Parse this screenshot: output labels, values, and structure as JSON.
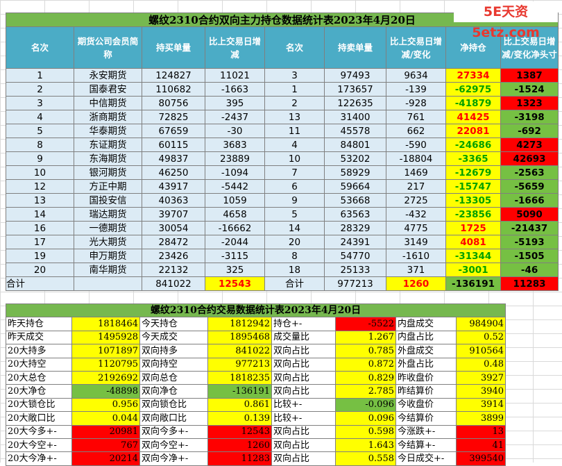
{
  "watermark": "5E天资5etz.com",
  "table1": {
    "title": "螺纹2310合约双向主力持仓数据统计表2023年4月20日",
    "headers": [
      "名次",
      "期货公司会员简称",
      "持买单量",
      "比上交易日增减",
      "名次",
      "持卖单量",
      "比上交易日增减/变化",
      "净持仓",
      "比上交易日增减/变化净头寸"
    ],
    "rows": [
      {
        "rank": "1",
        "name": "永安期货",
        "buy": "124827",
        "buy_chg": "11021",
        "srank": "3",
        "sell": "97493",
        "sell_chg": "9634",
        "net": "27334",
        "net_chg": "1387"
      },
      {
        "rank": "2",
        "name": "国泰君安",
        "buy": "110682",
        "buy_chg": "-1663",
        "srank": "1",
        "sell": "173657",
        "sell_chg": "-139",
        "net": "-62975",
        "net_chg": "-1524"
      },
      {
        "rank": "3",
        "name": "中信期货",
        "buy": "80756",
        "buy_chg": "395",
        "srank": "2",
        "sell": "122635",
        "sell_chg": "-928",
        "net": "-41879",
        "net_chg": "1323"
      },
      {
        "rank": "4",
        "name": "浙商期货",
        "buy": "72825",
        "buy_chg": "-2437",
        "srank": "13",
        "sell": "31400",
        "sell_chg": "761",
        "net": "41425",
        "net_chg": "-3198"
      },
      {
        "rank": "5",
        "name": "华泰期货",
        "buy": "67659",
        "buy_chg": "-30",
        "srank": "11",
        "sell": "45578",
        "sell_chg": "662",
        "net": "22081",
        "net_chg": "-692"
      },
      {
        "rank": "8",
        "name": "东证期货",
        "buy": "60115",
        "buy_chg": "3683",
        "srank": "4",
        "sell": "84801",
        "sell_chg": "-590",
        "net": "-24686",
        "net_chg": "4273"
      },
      {
        "rank": "9",
        "name": "东海期货",
        "buy": "49837",
        "buy_chg": "23889",
        "srank": "10",
        "sell": "53202",
        "sell_chg": "-18804",
        "net": "-3365",
        "net_chg": "42693"
      },
      {
        "rank": "10",
        "name": "银河期货",
        "buy": "46250",
        "buy_chg": "-1094",
        "srank": "7",
        "sell": "58929",
        "sell_chg": "1469",
        "net": "-12679",
        "net_chg": "-2563"
      },
      {
        "rank": "12",
        "name": "方正中期",
        "buy": "43917",
        "buy_chg": "-5442",
        "srank": "6",
        "sell": "59664",
        "sell_chg": "217",
        "net": "-15747",
        "net_chg": "-5659"
      },
      {
        "rank": "13",
        "name": "国投安信",
        "buy": "40363",
        "buy_chg": "1059",
        "srank": "9",
        "sell": "53668",
        "sell_chg": "2725",
        "net": "-13305",
        "net_chg": "-1666"
      },
      {
        "rank": "14",
        "name": "瑞达期货",
        "buy": "39707",
        "buy_chg": "4658",
        "srank": "5",
        "sell": "63563",
        "sell_chg": "-432",
        "net": "-23856",
        "net_chg": "5090"
      },
      {
        "rank": "16",
        "name": "一德期货",
        "buy": "30054",
        "buy_chg": "-16662",
        "srank": "14",
        "sell": "28329",
        "sell_chg": "4775",
        "net": "1725",
        "net_chg": "-21437"
      },
      {
        "rank": "17",
        "name": "光大期货",
        "buy": "28472",
        "buy_chg": "-2044",
        "srank": "20",
        "sell": "24391",
        "sell_chg": "3149",
        "net": "4081",
        "net_chg": "-5193"
      },
      {
        "rank": "19",
        "name": "申万期货",
        "buy": "23426",
        "buy_chg": "-3115",
        "srank": "8",
        "sell": "54770",
        "sell_chg": "-1610",
        "net": "-31344",
        "net_chg": "-1505"
      },
      {
        "rank": "20",
        "name": "南华期货",
        "buy": "22132",
        "buy_chg": "325",
        "srank": "18",
        "sell": "25133",
        "sell_chg": "371",
        "net": "-3001",
        "net_chg": "-46"
      }
    ],
    "total": {
      "label": "合计",
      "buy": "841022",
      "buy_chg": "12543",
      "label2": "合计",
      "sell": "977213",
      "sell_chg": "1260",
      "net": "-136191",
      "net_chg": "11283"
    }
  },
  "table2": {
    "title": "螺纹2310合约交易数据统计表2023年4月20日",
    "rows": [
      [
        "昨天持仓",
        "1818464",
        "今天持仓",
        "1812942",
        "持仓+-",
        "-5522",
        "内盘成交",
        "984904"
      ],
      [
        "昨天成交",
        "1495928",
        "今天成交",
        "1895468",
        "成交量比",
        "1.267",
        "内盘占比",
        "0.52"
      ],
      [
        "20大持多",
        "1071897",
        "双向持多",
        "841022",
        "双向占比",
        "0.785",
        "外盘成交",
        "910564"
      ],
      [
        "20大持空",
        "1120795",
        "双向持空",
        "977213",
        "双向占比",
        "0.872",
        "外盘占比",
        "0.48"
      ],
      [
        "20大总仓",
        "2192692",
        "双向总仓",
        "1818235",
        "双向占比",
        "0.829",
        "昨收盘价",
        "3927"
      ],
      [
        "20大净仓",
        "-48898",
        "双向净仓",
        "-136191",
        "双向占比",
        "2.785",
        "昨结算价",
        "3940"
      ],
      [
        "20大锁仓比",
        "0.956",
        "双向锁仓比",
        "0.861",
        "比较+-",
        "-0.096",
        "今收盘价",
        "3914"
      ],
      [
        "20大敞口比",
        "0.044",
        "双向敞口比",
        "0.139",
        "比较+-",
        "0.096",
        "今结算价",
        "3899"
      ],
      [
        "20大今多+-",
        "20981",
        "双向今多+-",
        "12543",
        "双向占比",
        "0.598",
        "今涨跌+-",
        "13"
      ],
      [
        "20大今空+-",
        "767",
        "双向今空+-",
        "1260",
        "双向占比",
        "1.643",
        "今结算+-",
        "41"
      ],
      [
        "20大今净+-",
        "20214",
        "双向今净+-",
        "11283",
        "双向占比",
        "0.558",
        "今日成交+-",
        "399540"
      ]
    ]
  },
  "colors": {
    "title_green": "#76b84f",
    "header_blue": "#4bacc6",
    "row_bg": "#dcebf5",
    "yellow": "#ffff00",
    "green": "#76c043",
    "red": "#ff0000"
  }
}
